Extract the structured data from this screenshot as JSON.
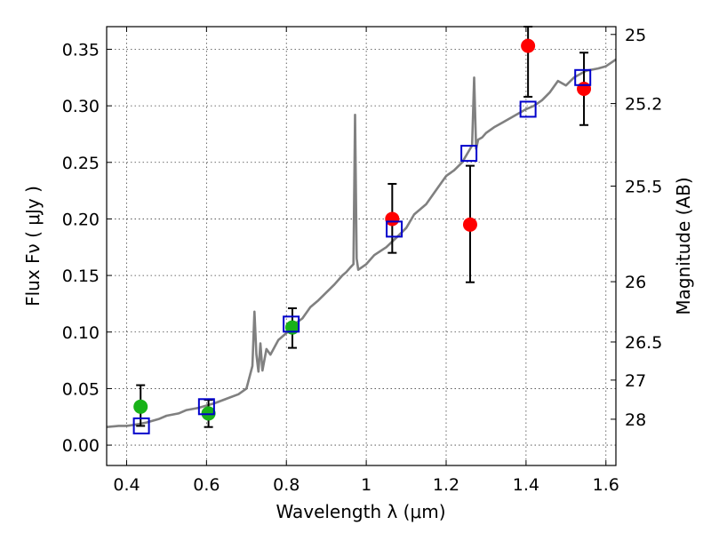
{
  "chart_data": {
    "type": "scatter",
    "title": "",
    "xlabel": "Wavelength  λ (μm)",
    "ylabel": "Flux  Fν  ( μJy )",
    "ylabel_right": "Magnitude (AB)",
    "xlim": [
      0.35,
      1.625
    ],
    "ylim": [
      -0.018,
      0.37
    ],
    "grid": true,
    "x_ticks": [
      0.4,
      0.6,
      0.8,
      1.0,
      1.2,
      1.4,
      1.6
    ],
    "x_tick_labels": [
      "0.4",
      "0.6",
      "0.8",
      "1",
      "1.2",
      "1.4",
      "1.6"
    ],
    "y_ticks": [
      0.0,
      0.05,
      0.1,
      0.15,
      0.2,
      0.25,
      0.3,
      0.35
    ],
    "y_tick_labels": [
      "0.00",
      "0.05",
      "0.10",
      "0.15",
      "0.20",
      "0.25",
      "0.30",
      "0.35"
    ],
    "right_ticks": [
      {
        "label": "25",
        "flux": 0.3631
      },
      {
        "label": "25.2",
        "flux": 0.302
      },
      {
        "label": "25.5",
        "flux": 0.229
      },
      {
        "label": "26",
        "flux": 0.1445
      },
      {
        "label": "26.5",
        "flux": 0.0912
      },
      {
        "label": "27",
        "flux": 0.0575
      },
      {
        "label": "28",
        "flux": 0.0229
      }
    ],
    "model_spectrum": {
      "color": "#808080",
      "x": [
        0.35,
        0.38,
        0.4,
        0.42,
        0.45,
        0.48,
        0.5,
        0.53,
        0.55,
        0.58,
        0.6,
        0.62,
        0.65,
        0.68,
        0.7,
        0.715,
        0.72,
        0.725,
        0.73,
        0.735,
        0.74,
        0.75,
        0.76,
        0.78,
        0.8,
        0.82,
        0.84,
        0.86,
        0.88,
        0.9,
        0.92,
        0.94,
        0.95,
        0.96,
        0.968,
        0.972,
        0.976,
        0.98,
        1.0,
        1.02,
        1.05,
        1.08,
        1.1,
        1.12,
        1.15,
        1.18,
        1.2,
        1.22,
        1.24,
        1.26,
        1.265,
        1.27,
        1.275,
        1.28,
        1.29,
        1.3,
        1.32,
        1.34,
        1.36,
        1.38,
        1.4,
        1.42,
        1.44,
        1.46,
        1.48,
        1.5,
        1.52,
        1.55,
        1.58,
        1.6,
        1.625
      ],
      "y": [
        0.016,
        0.017,
        0.017,
        0.018,
        0.02,
        0.023,
        0.026,
        0.028,
        0.031,
        0.033,
        0.035,
        0.037,
        0.041,
        0.045,
        0.05,
        0.07,
        0.118,
        0.08,
        0.065,
        0.09,
        0.066,
        0.085,
        0.08,
        0.093,
        0.099,
        0.107,
        0.112,
        0.122,
        0.128,
        0.135,
        0.142,
        0.15,
        0.153,
        0.157,
        0.16,
        0.292,
        0.165,
        0.155,
        0.16,
        0.168,
        0.175,
        0.185,
        0.192,
        0.204,
        0.213,
        0.228,
        0.238,
        0.243,
        0.25,
        0.262,
        0.265,
        0.325,
        0.262,
        0.27,
        0.272,
        0.276,
        0.281,
        0.285,
        0.289,
        0.293,
        0.297,
        0.3,
        0.305,
        0.312,
        0.322,
        0.318,
        0.325,
        0.331,
        0.333,
        0.335,
        0.341
      ]
    },
    "series": [
      {
        "marker": "circle",
        "color": "#18b218",
        "points": [
          {
            "x": 0.435,
            "y": 0.034,
            "err_low": 0.017,
            "err_high": 0.053
          },
          {
            "x": 0.605,
            "y": 0.028,
            "err_low": 0.016,
            "err_high": 0.04
          },
          {
            "x": 0.815,
            "y": 0.104,
            "err_low": 0.086,
            "err_high": 0.121
          }
        ]
      },
      {
        "marker": "circle",
        "color": "#ff0000",
        "points": [
          {
            "x": 1.065,
            "y": 0.2,
            "err_low": 0.17,
            "err_high": 0.231
          },
          {
            "x": 1.26,
            "y": 0.195,
            "err_low": 0.144,
            "err_high": 0.247
          },
          {
            "x": 1.405,
            "y": 0.353,
            "err_low": 0.308,
            "err_high": 0.37
          },
          {
            "x": 1.545,
            "y": 0.315,
            "err_low": 0.283,
            "err_high": 0.347
          }
        ]
      },
      {
        "marker": "square",
        "color": "#0000cc",
        "points": [
          {
            "x": 0.437,
            "y": 0.017
          },
          {
            "x": 0.6,
            "y": 0.034
          },
          {
            "x": 0.812,
            "y": 0.107
          },
          {
            "x": 1.07,
            "y": 0.191
          },
          {
            "x": 1.257,
            "y": 0.258
          },
          {
            "x": 1.405,
            "y": 0.297
          },
          {
            "x": 1.542,
            "y": 0.325
          }
        ]
      }
    ]
  }
}
